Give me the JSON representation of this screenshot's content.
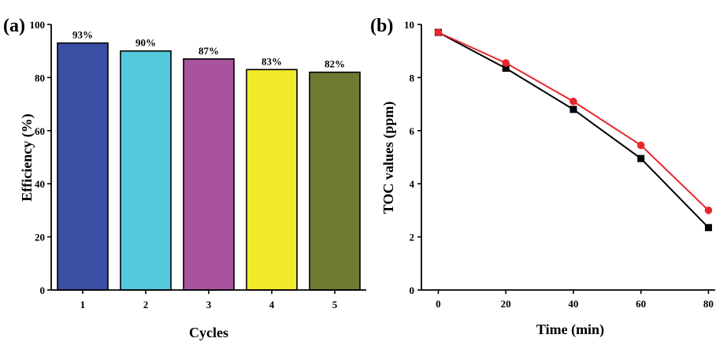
{
  "chart_data": [
    {
      "type": "bar",
      "panel_label": "(a)",
      "categories": [
        "1",
        "2",
        "3",
        "4",
        "5"
      ],
      "values": [
        93,
        90,
        87,
        83,
        82
      ],
      "data_labels": [
        "93%",
        "90%",
        "87%",
        "83%",
        "82%"
      ],
      "colors": [
        "#3a4fa3",
        "#56c8dc",
        "#a9539f",
        "#f1ea2a",
        "#717a32"
      ],
      "xlabel": "Cycles",
      "ylabel": "Efficiency (%)",
      "ylim": [
        0,
        100
      ],
      "yticks": [
        0,
        20,
        40,
        60,
        80,
        100
      ],
      "grid": false
    },
    {
      "type": "line",
      "panel_label": "(b)",
      "x": [
        0,
        20,
        40,
        60,
        80
      ],
      "series": [
        {
          "values": [
            9.7,
            8.35,
            6.8,
            4.95,
            2.35
          ],
          "color": "#000000",
          "marker": "square"
        },
        {
          "values": [
            9.7,
            8.55,
            7.1,
            5.45,
            3.0
          ],
          "color": "#e8272b",
          "marker": "circle"
        }
      ],
      "xlabel": "Time (min)",
      "ylabel": "TOC values (ppm)",
      "xlim": [
        -5,
        82
      ],
      "ylim": [
        0,
        10
      ],
      "xticks": [
        0,
        20,
        40,
        60,
        80
      ],
      "yticks": [
        0,
        2,
        4,
        6,
        8,
        10
      ],
      "grid": false
    }
  ]
}
